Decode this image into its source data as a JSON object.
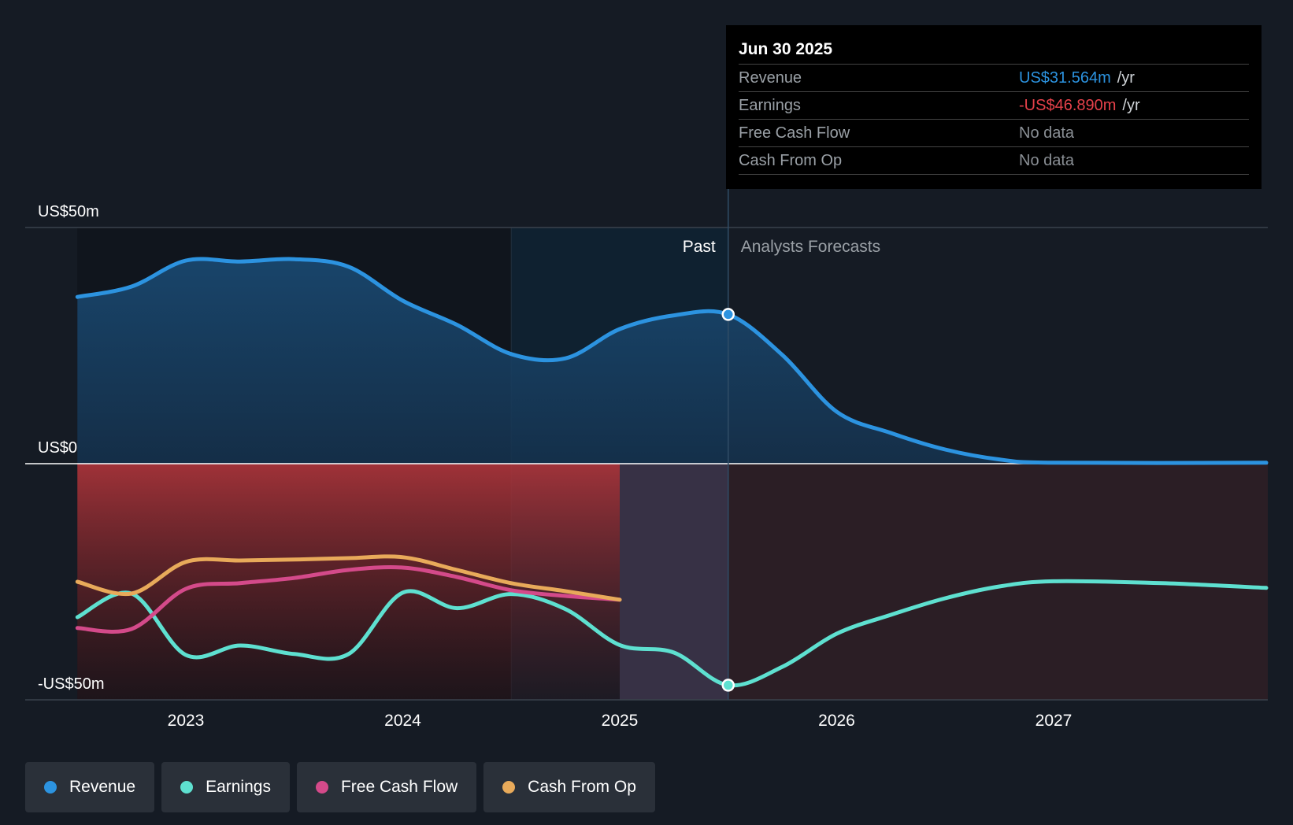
{
  "tooltip": {
    "date": "Jun 30 2025",
    "rows": [
      {
        "label": "Revenue",
        "value": "US$31.564m",
        "unit": "/yr",
        "color": "#2c93e0"
      },
      {
        "label": "Earnings",
        "value": "-US$46.890m",
        "unit": "/yr",
        "color": "#e5414a"
      },
      {
        "label": "Free Cash Flow",
        "value": "No data",
        "unit": "",
        "color": "#8a8f95"
      },
      {
        "label": "Cash From Op",
        "value": "No data",
        "unit": "",
        "color": "#8a8f95"
      }
    ]
  },
  "labels": {
    "past": "Past",
    "forecast": "Analysts Forecasts"
  },
  "legend": [
    {
      "label": "Revenue",
      "color": "#2c93e0"
    },
    {
      "label": "Earnings",
      "color": "#5ee0d0"
    },
    {
      "label": "Free Cash Flow",
      "color": "#d44a8a"
    },
    {
      "label": "Cash From Op",
      "color": "#e8aa5a"
    }
  ],
  "chart_data": {
    "type": "line",
    "x_ticks": [
      "2023",
      "2024",
      "2025",
      "2026",
      "2027"
    ],
    "y_ticks": [
      "US$50m",
      "US$0",
      "-US$50m"
    ],
    "ylim": [
      -50,
      50
    ],
    "xlim": [
      2022.25,
      2027.98
    ],
    "past_end": 2025.5,
    "highlight_start": 2024.5,
    "series": [
      {
        "name": "Revenue",
        "color": "#2c93e0",
        "points": [
          [
            2022.5,
            35.3
          ],
          [
            2022.75,
            37.5
          ],
          [
            2023.0,
            43.0
          ],
          [
            2023.25,
            42.8
          ],
          [
            2023.5,
            43.3
          ],
          [
            2023.75,
            41.7
          ],
          [
            2024.0,
            34.5
          ],
          [
            2024.25,
            29.4
          ],
          [
            2024.5,
            23.2
          ],
          [
            2024.75,
            22.3
          ],
          [
            2025.0,
            28.5
          ],
          [
            2025.25,
            31.4
          ],
          [
            2025.5,
            31.6
          ],
          [
            2025.75,
            23.0
          ],
          [
            2026.0,
            11.0
          ],
          [
            2026.25,
            6.5
          ],
          [
            2026.5,
            3.0
          ],
          [
            2026.75,
            0.9
          ],
          [
            2027.0,
            0.2
          ],
          [
            2027.98,
            0.2
          ]
        ]
      },
      {
        "name": "Earnings",
        "color": "#5ee0d0",
        "points": [
          [
            2022.5,
            -32.5
          ],
          [
            2022.75,
            -27.5
          ],
          [
            2023.0,
            -40.5
          ],
          [
            2023.25,
            -38.5
          ],
          [
            2023.5,
            -40.3
          ],
          [
            2023.75,
            -40.3
          ],
          [
            2024.0,
            -27.3
          ],
          [
            2024.25,
            -30.6
          ],
          [
            2024.5,
            -27.6
          ],
          [
            2024.75,
            -30.8
          ],
          [
            2025.0,
            -38.4
          ],
          [
            2025.25,
            -40.0
          ],
          [
            2025.5,
            -46.9
          ],
          [
            2025.75,
            -43.0
          ],
          [
            2026.0,
            -36.0
          ],
          [
            2026.25,
            -32.0
          ],
          [
            2026.5,
            -28.5
          ],
          [
            2026.75,
            -26.0
          ],
          [
            2027.0,
            -24.9
          ],
          [
            2027.5,
            -25.3
          ],
          [
            2027.98,
            -26.3
          ]
        ]
      },
      {
        "name": "Free Cash Flow",
        "color": "#d44a8a",
        "points": [
          [
            2022.5,
            -34.8
          ],
          [
            2022.75,
            -35.0
          ],
          [
            2023.0,
            -26.5
          ],
          [
            2023.25,
            -25.3
          ],
          [
            2023.5,
            -24.2
          ],
          [
            2023.75,
            -22.5
          ],
          [
            2024.0,
            -22.0
          ],
          [
            2024.25,
            -24.0
          ],
          [
            2024.5,
            -26.8
          ],
          [
            2024.75,
            -28.0
          ],
          [
            2025.0,
            -28.8
          ]
        ]
      },
      {
        "name": "Cash From Op",
        "color": "#e8aa5a",
        "points": [
          [
            2022.5,
            -25.0
          ],
          [
            2022.75,
            -27.5
          ],
          [
            2023.0,
            -20.8
          ],
          [
            2023.25,
            -20.5
          ],
          [
            2023.5,
            -20.3
          ],
          [
            2023.75,
            -20.0
          ],
          [
            2024.0,
            -19.8
          ],
          [
            2024.25,
            -22.5
          ],
          [
            2024.5,
            -25.3
          ],
          [
            2024.75,
            -27.0
          ],
          [
            2025.0,
            -28.8
          ]
        ]
      }
    ],
    "markers": [
      {
        "series": "Revenue",
        "x": 2025.5,
        "y": 31.6
      },
      {
        "series": "Earnings",
        "x": 2025.5,
        "y": -46.9
      }
    ]
  }
}
